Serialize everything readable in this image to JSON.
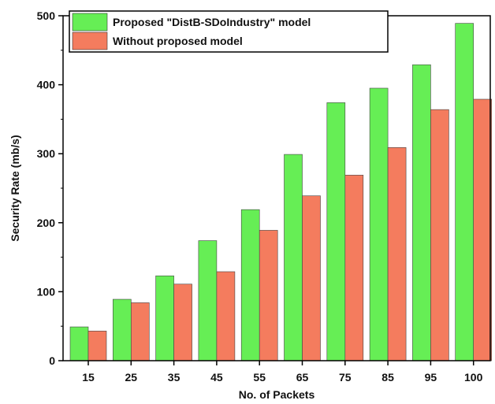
{
  "chart_data": {
    "type": "bar",
    "categories": [
      "15",
      "25",
      "35",
      "45",
      "55",
      "65",
      "75",
      "85",
      "95",
      "100"
    ],
    "series": [
      {
        "name": "Proposed \"DistB-SDoIndustry\" model",
        "color": "#66ee55",
        "values": [
          49,
          89,
          123,
          174,
          219,
          299,
          374,
          395,
          429,
          489
        ]
      },
      {
        "name": "Without proposed model",
        "color": "#f47c5e",
        "values": [
          43,
          84,
          111,
          129,
          189,
          239,
          269,
          309,
          364,
          379
        ]
      }
    ],
    "xlabel": "No. of Packets",
    "ylabel": "Security Rate (mb/s)",
    "ylim": [
      0,
      500
    ],
    "yticks": [
      0,
      100,
      200,
      300,
      400,
      500
    ],
    "grid": false,
    "legend_position": "top-left"
  }
}
